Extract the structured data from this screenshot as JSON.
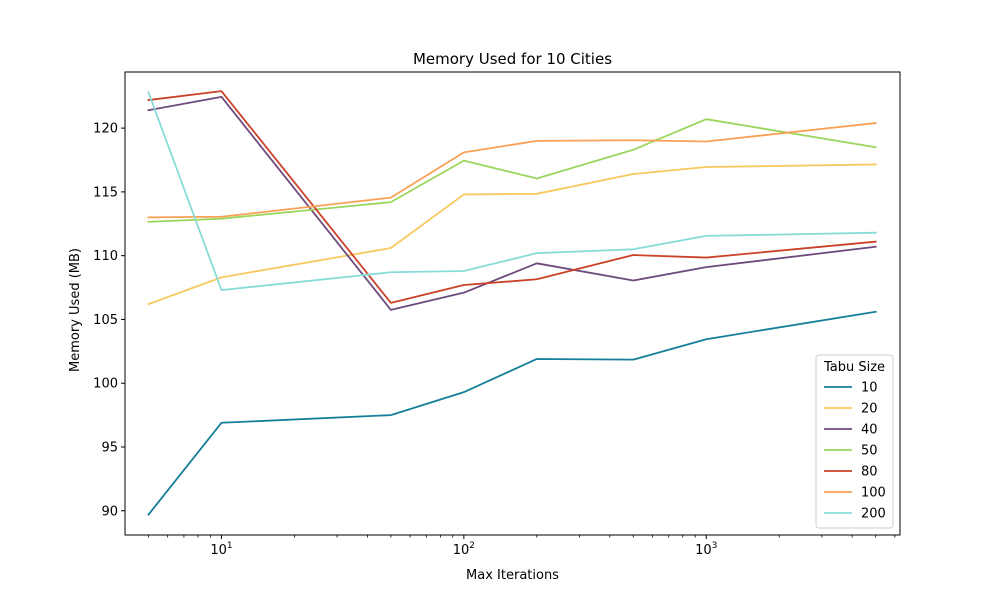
{
  "chart_data": {
    "type": "line",
    "title": "Memory Used for 10 Cities",
    "xlabel": "Max Iterations",
    "ylabel": "Memory Used (MB)",
    "xscale": "log",
    "x": [
      5,
      10,
      50,
      100,
      200,
      500,
      1000,
      5000
    ],
    "xlim": [
      4,
      6300
    ],
    "ylim": [
      88.1,
      124.4
    ],
    "xticks": [
      {
        "value": 10,
        "base": "10",
        "exp": "1"
      },
      {
        "value": 100,
        "base": "10",
        "exp": "2"
      },
      {
        "value": 1000,
        "base": "10",
        "exp": "3"
      }
    ],
    "yticks": [
      "90",
      "95",
      "100",
      "105",
      "110",
      "115",
      "120"
    ],
    "grid": false,
    "legend": {
      "title": "Tabu Size",
      "position": "lower right"
    },
    "series": [
      {
        "name": "10",
        "color": "#157f9a",
        "values": [
          89.7,
          96.9,
          97.5,
          99.3,
          101.9,
          101.85,
          103.45,
          105.6
        ]
      },
      {
        "name": "20",
        "color": "#f7c95e",
        "values": [
          106.2,
          108.3,
          110.6,
          114.8,
          114.85,
          116.4,
          116.95,
          117.15
        ]
      },
      {
        "name": "40",
        "color": "#6e4a7d",
        "values": [
          121.4,
          122.45,
          105.75,
          107.1,
          109.4,
          108.05,
          109.1,
          110.7
        ]
      },
      {
        "name": "50",
        "color": "#9bd65c",
        "values": [
          112.65,
          112.9,
          114.2,
          117.45,
          116.05,
          118.3,
          120.7,
          118.5
        ]
      },
      {
        "name": "80",
        "color": "#cb4228",
        "values": [
          122.2,
          122.9,
          106.3,
          107.7,
          108.15,
          110.05,
          109.85,
          111.1
        ]
      },
      {
        "name": "100",
        "color": "#f9a055",
        "values": [
          113.0,
          113.05,
          114.55,
          118.1,
          119.0,
          119.05,
          118.95,
          120.4
        ]
      },
      {
        "name": "200",
        "color": "#87dcd8",
        "values": [
          122.8,
          107.3,
          108.7,
          108.8,
          110.2,
          110.5,
          111.55,
          111.8
        ]
      }
    ]
  }
}
